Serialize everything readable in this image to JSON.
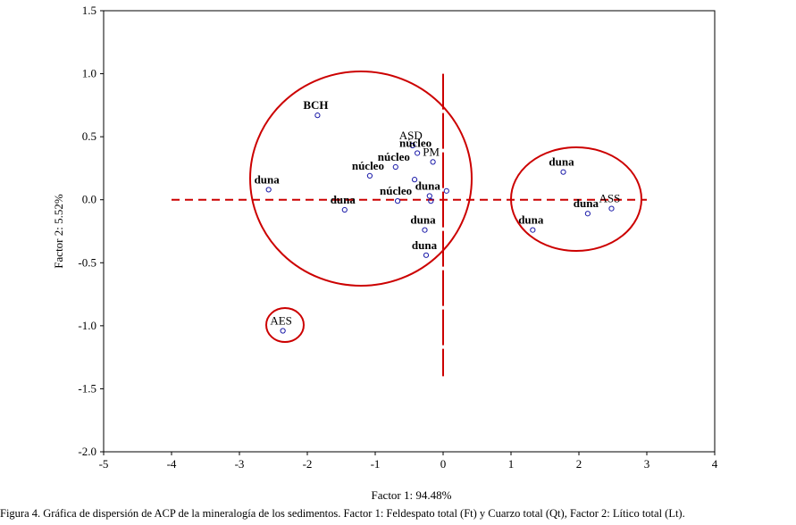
{
  "chart_data": {
    "type": "scatter",
    "title": "",
    "xlabel": "Factor 1: 94.48%",
    "ylabel": "Factor 2: 5.52%",
    "xlim": [
      -5,
      4
    ],
    "ylim": [
      -2.0,
      1.5
    ],
    "xticks": [
      "-5",
      "-4",
      "-3",
      "-2",
      "-1",
      "0",
      "1",
      "2",
      "3",
      "4"
    ],
    "yticks": [
      "1.5",
      "1.0",
      "0.5",
      "0.0",
      "-0.5",
      "-1.0",
      "-1.5",
      "-2.0"
    ],
    "grid": false,
    "points": [
      {
        "label": "BCH",
        "x": -1.85,
        "y": 0.67,
        "bold": true
      },
      {
        "label": "ASD",
        "x": -0.45,
        "y": 0.43,
        "bold": false
      },
      {
        "label": "PM",
        "x": -0.15,
        "y": 0.3,
        "bold": false
      },
      {
        "label": "núcleo",
        "x": -0.38,
        "y": 0.37,
        "bold": true
      },
      {
        "label": "núcleo",
        "x": -0.7,
        "y": 0.26,
        "bold": true
      },
      {
        "label": "núcleo",
        "x": -1.08,
        "y": 0.19,
        "bold": true
      },
      {
        "label": "núcleo",
        "x": -0.67,
        "y": -0.01,
        "bold": true
      },
      {
        "label": "duna",
        "x": -2.57,
        "y": 0.08,
        "bold": true
      },
      {
        "label": "duna",
        "x": -1.45,
        "y": -0.08,
        "bold": true
      },
      {
        "label": "duna",
        "x": -0.2,
        "y": 0.03,
        "bold": true
      },
      {
        "label": "duna",
        "x": -0.27,
        "y": -0.24,
        "bold": true
      },
      {
        "label": "duna",
        "x": -0.25,
        "y": -0.44,
        "bold": true
      },
      {
        "label": "AES",
        "x": -2.36,
        "y": -1.04,
        "bold": false
      },
      {
        "label": "duna",
        "x": 1.77,
        "y": 0.22,
        "bold": true
      },
      {
        "label": "ASS",
        "x": 2.48,
        "y": -0.07,
        "bold": false
      },
      {
        "label": "duna",
        "x": 2.13,
        "y": -0.11,
        "bold": true
      },
      {
        "label": "duna",
        "x": 1.32,
        "y": -0.24,
        "bold": true
      }
    ],
    "unlabeled_points": [
      {
        "x": -0.18,
        "y": -0.01
      },
      {
        "x": 0.05,
        "y": 0.07
      },
      {
        "x": -0.42,
        "y": 0.16
      }
    ],
    "annotations": {
      "circles_color": "#cc0000",
      "point_color": "#1a1aa8"
    }
  },
  "caption": "Figura 4. Gráfica de dispersión de ACP de la mineralogía de los sedimentos. Factor 1: Feldespato total (Ft) y Cuarzo total (Qt), Factor 2: Lítico total (Lt)."
}
